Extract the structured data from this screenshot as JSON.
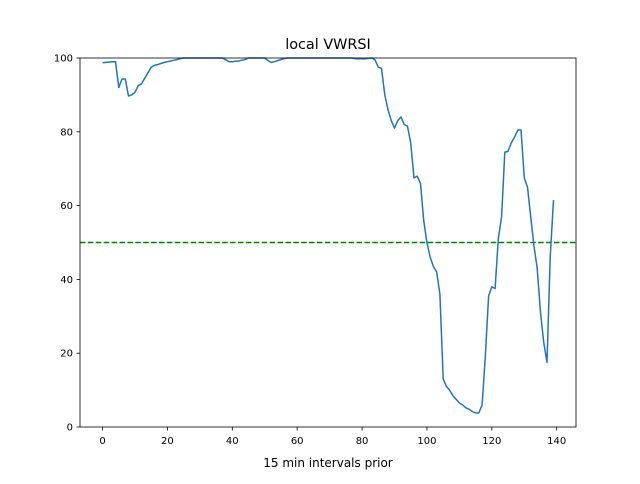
{
  "chart_data": {
    "type": "line",
    "title": "local VWRSI",
    "xlabel": "15 min intervals prior",
    "ylabel": "",
    "xlim": [
      -6.95,
      145.95
    ],
    "ylim": [
      0,
      100
    ],
    "xticks": [
      0,
      20,
      40,
      60,
      80,
      100,
      120,
      140
    ],
    "yticks": [
      0,
      20,
      40,
      60,
      80,
      100
    ],
    "grid": false,
    "series": [
      {
        "name": "local VWRSI",
        "color": "#1f77b4",
        "values": [
          98.7,
          98.8,
          98.9,
          99,
          99,
          92,
          94.3,
          94.3,
          89.7,
          90,
          90.7,
          92.5,
          93,
          94.5,
          96,
          97.5,
          98,
          98.2,
          98.5,
          98.8,
          99,
          99.2,
          99.4,
          99.6,
          99.8,
          100,
          100,
          100,
          100,
          100,
          100,
          100,
          100,
          100,
          100,
          100,
          100,
          100,
          99.5,
          99,
          99,
          99.1,
          99.2,
          99.4,
          99.6,
          100,
          100,
          100,
          100,
          100,
          100,
          99.3,
          98.8,
          99,
          99.3,
          99.6,
          99.8,
          100,
          100,
          100,
          100,
          100,
          100,
          100,
          100,
          100,
          100,
          100,
          100,
          100,
          100,
          100,
          100,
          100,
          100,
          100,
          100,
          100,
          99.8,
          99.8,
          99.8,
          99.8,
          99.9,
          100,
          99.5,
          97.5,
          97.2,
          90,
          86,
          83,
          81,
          83,
          84,
          82,
          81.5,
          77,
          67.5,
          68,
          66,
          56,
          50,
          46,
          43.5,
          42,
          36,
          13,
          11,
          10,
          8.5,
          7.5,
          6.5,
          6,
          5.2,
          4.8,
          4.2,
          3.8,
          3.8,
          6,
          19,
          35.5,
          38,
          37.5,
          51,
          57,
          74.5,
          74.7,
          77,
          78.5,
          80.5,
          80.5,
          67.5,
          65,
          57,
          49,
          43,
          31,
          23,
          17.5,
          46,
          61.5
        ]
      }
    ],
    "hlines": [
      {
        "y": 50,
        "color": "#008000",
        "style": "dashed"
      }
    ]
  }
}
